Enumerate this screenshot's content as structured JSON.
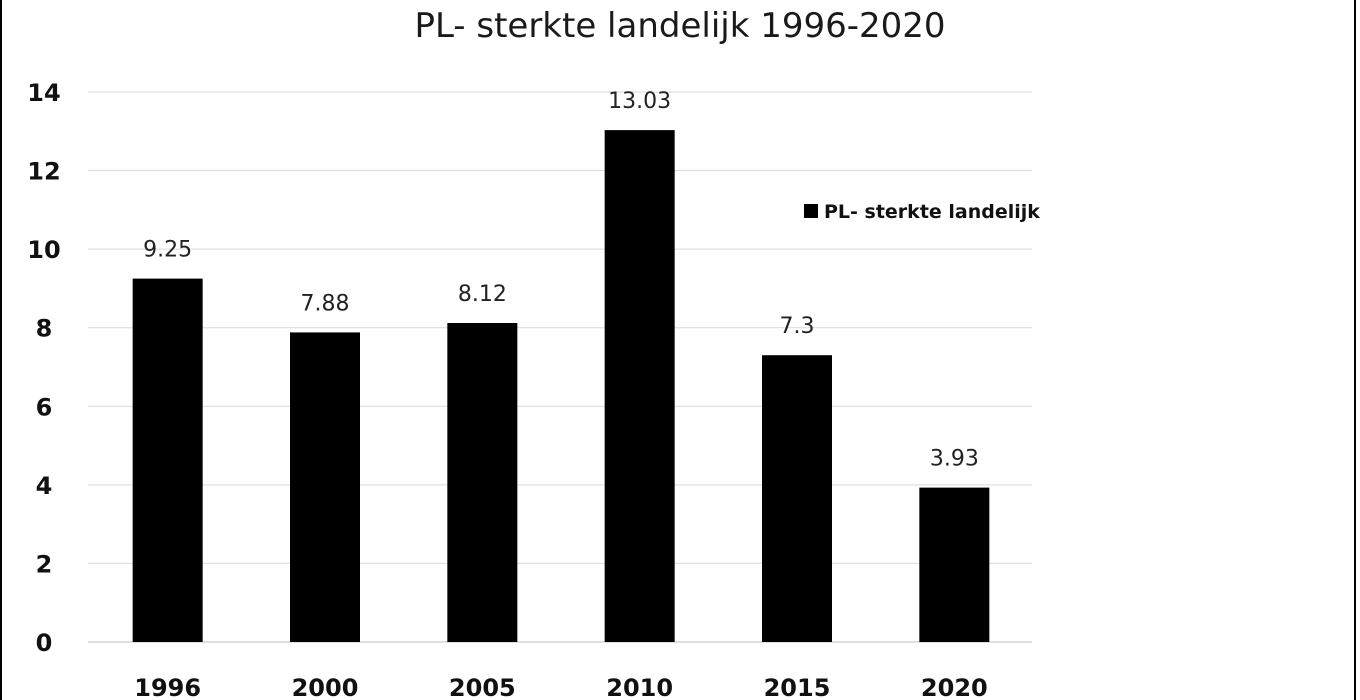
{
  "chart_data": {
    "type": "bar",
    "title": "PL- sterkte landelijk 1996-2020",
    "xlabel": "",
    "ylabel": "",
    "categories": [
      "1996",
      "2000",
      "2005",
      "2010",
      "2015",
      "2020"
    ],
    "series": [
      {
        "name": "PL- sterkte landelijk",
        "values": [
          9.25,
          7.88,
          8.12,
          13.03,
          7.3,
          3.93
        ],
        "labels": [
          "9.25",
          "7.88",
          "8.12",
          "13.03",
          "7.3",
          "3.93"
        ],
        "color": "#000000"
      }
    ],
    "yticks": [
      "0",
      "2",
      "4",
      "6",
      "8",
      "10",
      "12",
      "14"
    ],
    "ylim": [
      0,
      14
    ],
    "grid": true,
    "legend": "right"
  }
}
